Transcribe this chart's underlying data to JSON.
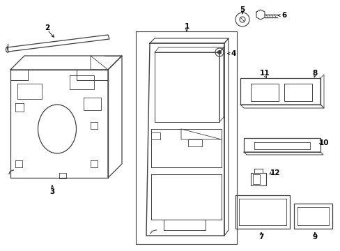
{
  "background_color": "#ffffff",
  "line_color": "#404040",
  "figsize": [
    4.89,
    3.6
  ],
  "dpi": 100
}
